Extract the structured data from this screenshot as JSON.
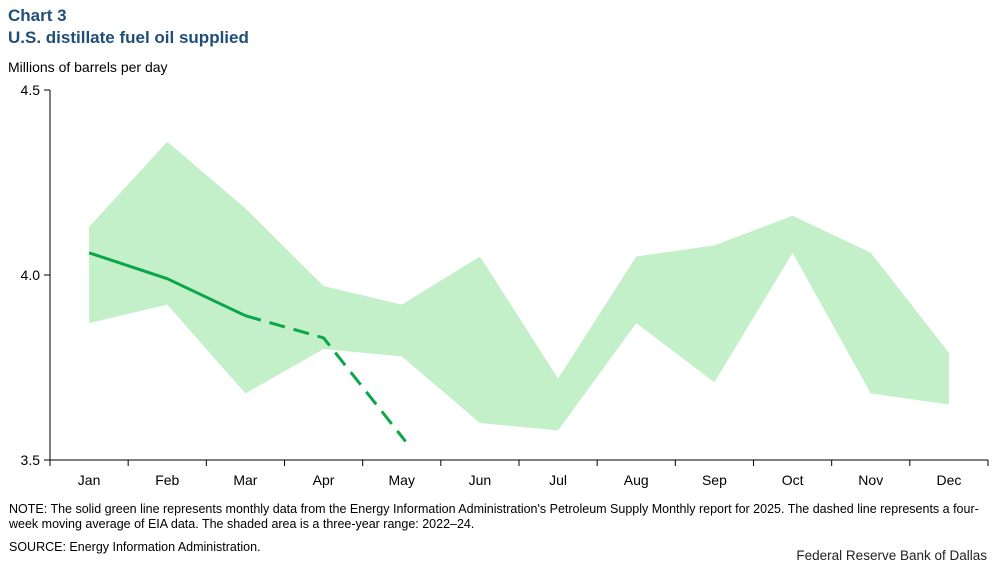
{
  "header": {
    "chart_label": "Chart 3",
    "title": "U.S. distillate fuel oil supplied",
    "unit_label": "Millions of barrels per day"
  },
  "chart_data": {
    "type": "area",
    "title": "U.S. distillate fuel oil supplied",
    "ylabel": "Millions of barrels per day",
    "ylim": [
      3.5,
      4.5
    ],
    "yticks": [
      "3.5",
      "4.0",
      "4.5"
    ],
    "categories": [
      "Jan",
      "Feb",
      "Mar",
      "Apr",
      "May",
      "Jun",
      "Jul",
      "Aug",
      "Sep",
      "Oct",
      "Nov",
      "Dec"
    ],
    "range_band": {
      "high": [
        4.13,
        4.36,
        4.18,
        3.97,
        3.92,
        4.05,
        3.72,
        4.05,
        4.08,
        4.16,
        4.06,
        3.79
      ],
      "low": [
        3.87,
        3.92,
        3.68,
        3.8,
        3.78,
        3.6,
        3.58,
        3.87,
        3.71,
        4.06,
        3.68,
        3.65
      ],
      "color": "#c3efc9"
    },
    "monthly_2025": {
      "x": [
        "Jan",
        "Feb",
        "Mar"
      ],
      "values": [
        4.06,
        3.99,
        3.89
      ],
      "color": "#0aa64a",
      "style": "solid"
    },
    "moving_average": {
      "x_positions": [
        2.0,
        3.0,
        4.05
      ],
      "values": [
        3.89,
        3.83,
        3.55
      ],
      "color": "#0aa64a",
      "style": "dashed"
    },
    "grid": false,
    "legend": "none"
  },
  "footer": {
    "note": "NOTE: The solid green line represents monthly data from the Energy Information Administration's Petroleum Supply Monthly report for 2025. The dashed line represents a four-week moving average of EIA data. The shaded area is a three-year range: 2022–24.",
    "source": "SOURCE: Energy Information Administration.",
    "credit": "Federal Reserve Bank of Dallas"
  }
}
